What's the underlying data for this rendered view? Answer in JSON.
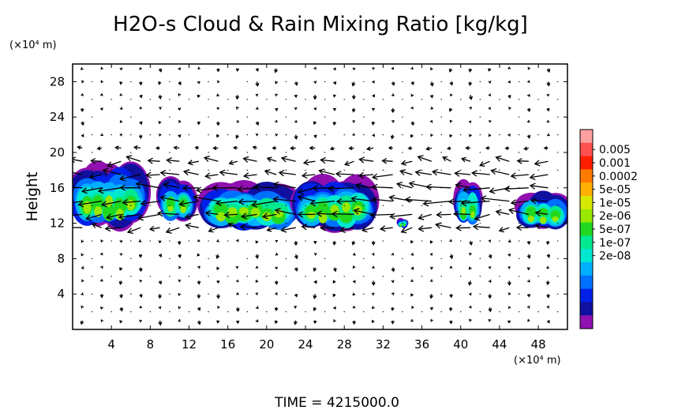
{
  "chart_data": {
    "type": "heatmap",
    "title": "H2O-s Cloud & Rain Mixing Ratio [kg/kg]",
    "x_unit": "(×10⁴ m)",
    "y_unit": "(×10⁴ m)",
    "ylabel": "Height",
    "xlim": [
      0,
      51
    ],
    "ylim": [
      0,
      30
    ],
    "x_ticks": [
      "4",
      "8",
      "12",
      "16",
      "20",
      "24",
      "28",
      "32",
      "36",
      "40",
      "44",
      "48"
    ],
    "x_tick_values": [
      4,
      8,
      12,
      16,
      20,
      24,
      28,
      32,
      36,
      40,
      44,
      48
    ],
    "y_ticks": [
      "4",
      "8",
      "12",
      "16",
      "20",
      "24",
      "28"
    ],
    "y_tick_values": [
      4,
      8,
      12,
      16,
      20,
      24,
      28
    ],
    "time_label": "TIME = 4215000.0",
    "colorbar": {
      "labels": [
        "0.005",
        "0.001",
        "0.0002",
        "5e-05",
        "1e-05",
        "2e-06",
        "5e-07",
        "1e-07",
        "2e-08"
      ],
      "colors": [
        "#ffa0a0",
        "#ff5050",
        "#ff1e00",
        "#ff7a00",
        "#ffb000",
        "#d8e800",
        "#98e800",
        "#20d820",
        "#00e890",
        "#00e8d0",
        "#00b0ff",
        "#0070ff",
        "#0020e8",
        "#1010a0",
        "#9010b0"
      ]
    },
    "cloud_regions": [
      {
        "x": [
          0,
          7.5
        ],
        "y": [
          11.8,
          18.5
        ]
      },
      {
        "x": [
          9,
          12.5
        ],
        "y": [
          12.5,
          17
        ]
      },
      {
        "x": [
          13.5,
          23
        ],
        "y": [
          11.5,
          16.5
        ]
      },
      {
        "x": [
          23,
          31
        ],
        "y": [
          11.5,
          17
        ]
      },
      {
        "x": [
          33.5,
          34.5
        ],
        "y": [
          11.5,
          12.5
        ]
      },
      {
        "x": [
          39.5,
          42
        ],
        "y": [
          12,
          17
        ]
      },
      {
        "x": [
          46,
          51
        ],
        "y": [
          11.5,
          15.5
        ]
      }
    ]
  }
}
